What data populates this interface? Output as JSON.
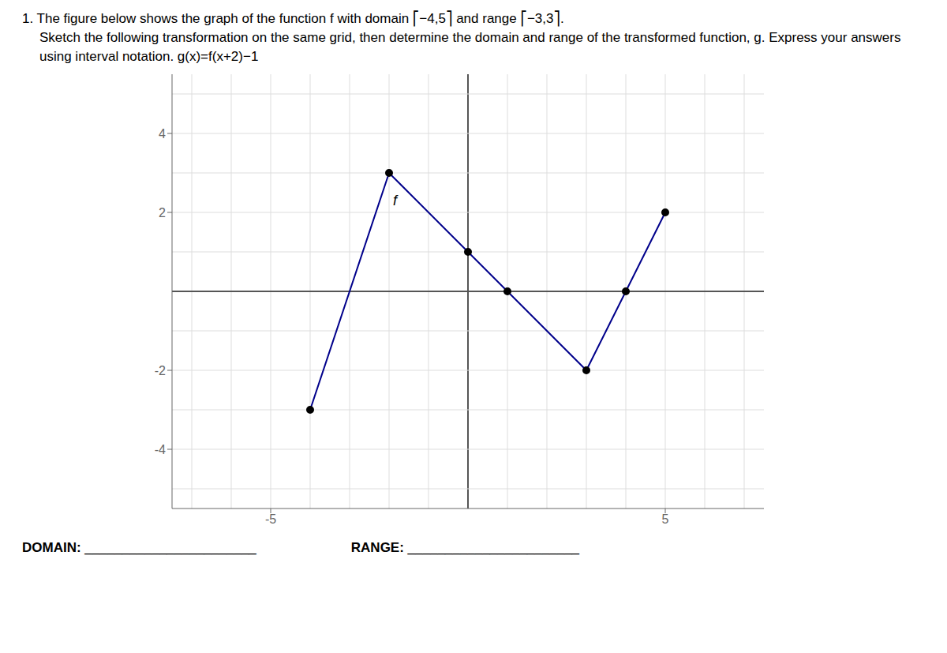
{
  "chart_data": {
    "type": "line",
    "title": "1. The figure below shows the graph of the function f with domain ⎡−4,5⎤ and range ⎡−3,3⎤.",
    "subtitle": "Sketch the following transformation on the same grid, then determine the domain and range of the transformed function, g.  Express your answers using interval notation.   g(x)=f(x+2)−1",
    "x": [
      -4,
      -2,
      0,
      1,
      3,
      4,
      5
    ],
    "values": [
      -3,
      3,
      1,
      0,
      -2,
      0,
      2
    ],
    "color": "#00008B",
    "marker": "circle",
    "xlim": [
      -7.5,
      7.5
    ],
    "ylim": [
      -5.5,
      5.5
    ],
    "xticks": [
      -5,
      5
    ],
    "yticks": [
      -4,
      -2,
      2,
      4
    ],
    "grid": true,
    "annotations": [
      {
        "text": "f",
        "x": -1.85,
        "y": 2.3
      },
      {
        "text": "DOMAIN: _______________________"
      },
      {
        "text": "RANGE: _______________________"
      }
    ]
  }
}
